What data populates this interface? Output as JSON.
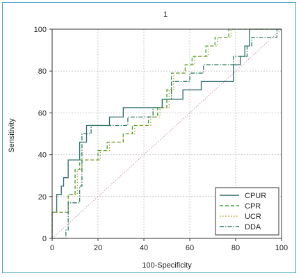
{
  "chart_data": {
    "type": "line",
    "title": "1",
    "xlabel": "100-Specificity",
    "ylabel": "Sensitivity",
    "xlim": [
      0,
      100
    ],
    "ylim": [
      0,
      100
    ],
    "xticks": [
      0,
      20,
      40,
      60,
      80,
      100
    ],
    "yticks": [
      0,
      20,
      40,
      60,
      80,
      100
    ],
    "grid": true,
    "legend_position": "bottom-right",
    "reference_line": {
      "x": [
        0,
        100
      ],
      "y": [
        0,
        100
      ],
      "color": "#c890b8"
    },
    "series": [
      {
        "name": "CPUR",
        "color": "#2e6b6b",
        "dash": "",
        "x": [
          0,
          0,
          2,
          2,
          4,
          4,
          5,
          5,
          7,
          7,
          12,
          12,
          15,
          15,
          25,
          25,
          31,
          31,
          48,
          48,
          57,
          57,
          65,
          65,
          79,
          79,
          82,
          82,
          84,
          84,
          86,
          86,
          100
        ],
        "y": [
          0,
          12.5,
          12.5,
          21,
          21,
          25,
          25,
          29,
          29,
          37.5,
          37.5,
          46,
          46,
          54,
          54,
          58,
          58,
          62.5,
          62.5,
          66.5,
          66.5,
          71,
          71,
          75,
          75,
          83,
          83,
          87,
          87,
          92,
          92,
          100,
          100
        ]
      },
      {
        "name": "CPR",
        "color": "#3aa63a",
        "dash": "5,3",
        "x": [
          0,
          0,
          7,
          7,
          10,
          10,
          12,
          12,
          20,
          20,
          24,
          24,
          31,
          31,
          35,
          35,
          42,
          42,
          46,
          46,
          50,
          50,
          52,
          52,
          58,
          58,
          61,
          61,
          67,
          67,
          71,
          71,
          77,
          77,
          83,
          83,
          100
        ],
        "y": [
          0,
          12.5,
          12.5,
          21,
          21,
          33,
          33,
          37.5,
          37.5,
          42,
          42,
          46,
          46,
          50,
          50,
          54,
          54,
          58,
          58,
          62.5,
          62.5,
          71,
          71,
          79,
          79,
          83,
          83,
          87,
          87,
          92,
          92,
          96,
          96,
          100,
          100,
          100,
          100
        ]
      },
      {
        "name": "UCR",
        "color": "#b89a2a",
        "dash": "1.5,2.5",
        "x": [
          0,
          0,
          7,
          7,
          11,
          11,
          13,
          13,
          21,
          21,
          25,
          25,
          31,
          31,
          36,
          36,
          43,
          43,
          47,
          47,
          51,
          51,
          53,
          53,
          58,
          58,
          62,
          62,
          68,
          68,
          72,
          72,
          78,
          78,
          100
        ],
        "y": [
          0,
          12.5,
          12.5,
          21,
          21,
          33,
          33,
          37.5,
          37.5,
          42,
          42,
          46,
          46,
          50,
          50,
          54,
          54,
          58,
          58,
          62.5,
          62.5,
          71,
          71,
          79,
          79,
          83,
          83,
          87,
          87,
          92,
          92,
          96,
          96,
          100,
          100
        ]
      },
      {
        "name": "DDA",
        "color": "#2e7a5a",
        "dash": "6,2,1.5,2",
        "x": [
          0,
          6,
          6,
          7,
          7,
          12,
          12,
          13,
          13,
          17,
          17,
          33,
          33,
          44,
          44,
          48,
          48,
          52,
          52,
          60,
          60,
          66,
          66,
          74,
          74,
          79,
          79,
          85,
          85,
          87,
          87,
          98,
          98,
          100
        ],
        "y": [
          0,
          0,
          4,
          4,
          17,
          17,
          25,
          25,
          50,
          50,
          54,
          54,
          58,
          58,
          62.5,
          62.5,
          66.5,
          66.5,
          75,
          75,
          79,
          79,
          83,
          83,
          83,
          83,
          87,
          87,
          92,
          92,
          96,
          96,
          100,
          100
        ]
      }
    ]
  }
}
